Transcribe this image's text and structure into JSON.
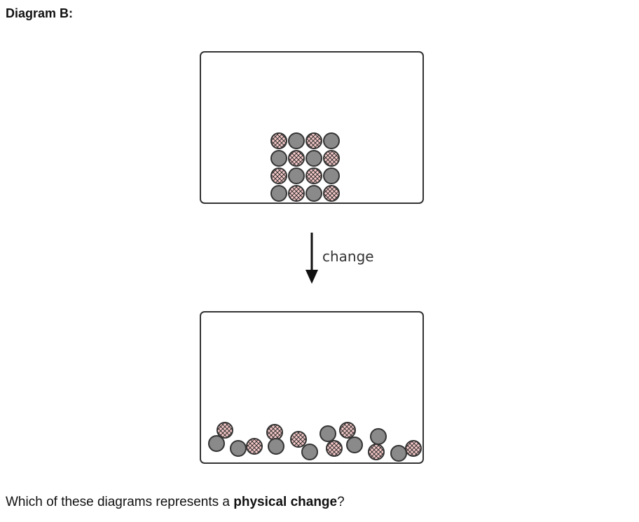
{
  "heading": "Diagram B:",
  "diagram": {
    "arrow_label": "change",
    "colors": {
      "gray_particle": "#8a8a8a",
      "pink_particle": "#f7c8c8",
      "hatch": "#333333",
      "outline": "#333333",
      "container_border": "#333333"
    },
    "before": {
      "state": "packed solid",
      "particle_count": 16,
      "rows": [
        [
          "pink",
          "gray",
          "pink",
          "gray"
        ],
        [
          "gray",
          "pink",
          "gray",
          "pink"
        ],
        [
          "pink",
          "gray",
          "pink",
          "gray"
        ],
        [
          "gray",
          "pink",
          "gray",
          "pink"
        ]
      ]
    },
    "after": {
      "state": "scattered",
      "particle_count": 16,
      "pink_count": 8,
      "gray_count": 8
    }
  },
  "question": {
    "before": "Which of these diagrams represents a ",
    "emphasis": "physical change",
    "after": "?"
  }
}
